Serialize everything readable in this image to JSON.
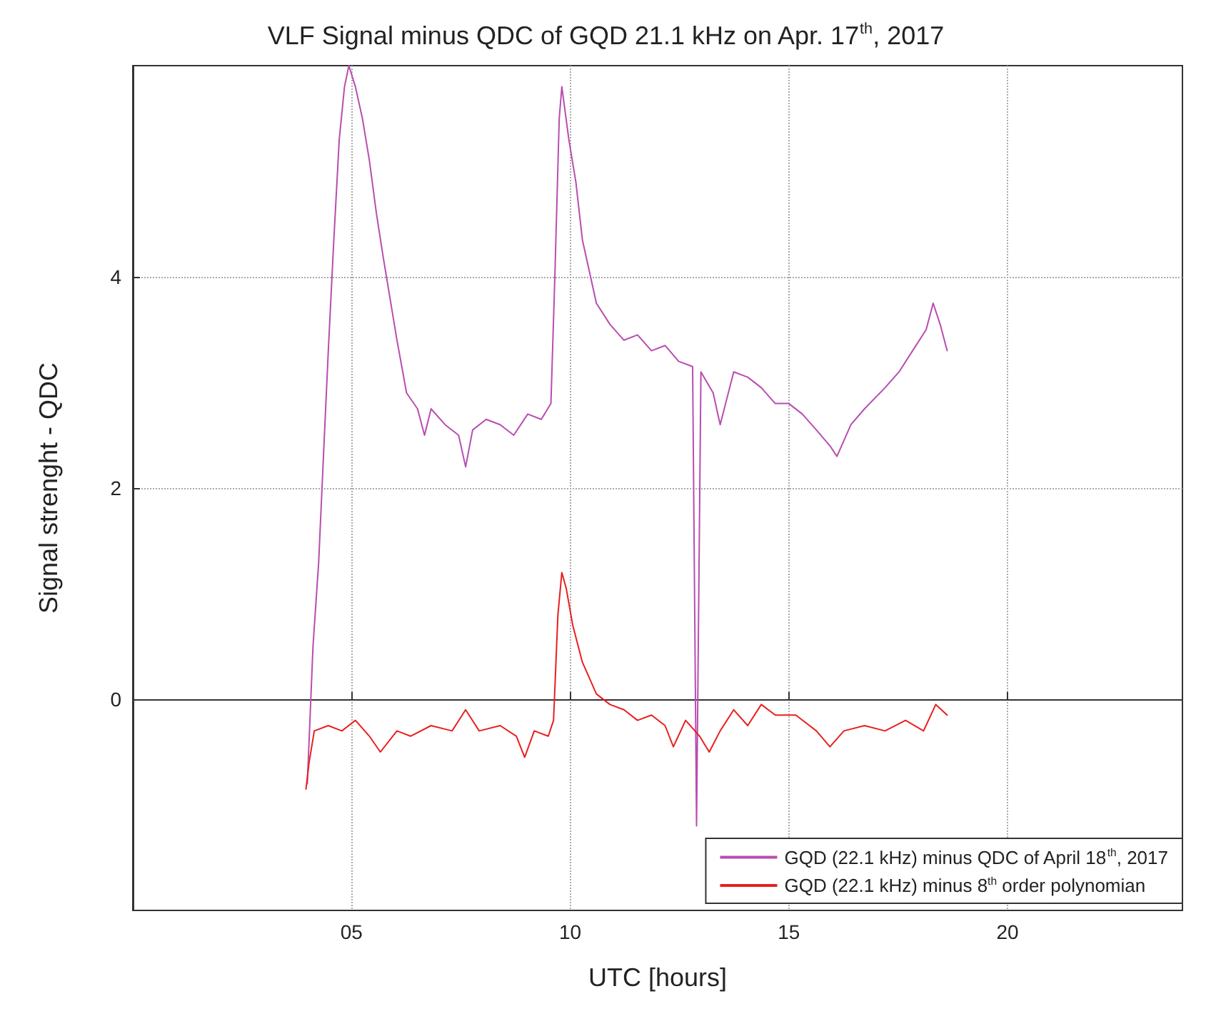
{
  "chart_data": {
    "type": "line",
    "title": "VLF Signal minus QDC of GQD 21.1 kHz on Apr. 17$^{th}$, 2017",
    "xlabel": "UTC [hours]",
    "ylabel": "Signal strenght - QDC",
    "xlim": [
      0,
      24
    ],
    "xticks": [
      {
        "value": 5,
        "label": "05"
      },
      10,
      15,
      20
    ],
    "ylim": [
      -2,
      6
    ],
    "yticks": [
      0,
      2,
      4
    ],
    "grid": true,
    "legend": "bottom right",
    "marker": "none",
    "line_style": "solid",
    "series": [
      {
        "name": "GQD (22.1 kHz) minus QDC of April 18$^{th}$, 2017",
        "color": "#b84db0",
        "x": [
          3.99,
          4.12,
          4.25,
          4.37,
          4.47,
          4.59,
          4.72,
          4.84,
          4.94,
          5.09,
          5.25,
          5.41,
          5.57,
          5.72,
          5.88,
          6.04,
          6.26,
          6.51,
          6.67,
          6.82,
          7.14,
          7.45,
          7.61,
          7.77,
          8.08,
          8.4,
          8.71,
          9.03,
          9.34,
          9.56,
          9.65,
          9.75,
          9.81,
          9.97,
          10.13,
          10.28,
          10.6,
          10.91,
          11.23,
          11.54,
          11.86,
          12.17,
          12.48,
          12.8,
          12.89,
          12.99,
          13.27,
          13.43,
          13.74,
          14.06,
          14.37,
          14.69,
          15.0,
          15.31,
          15.63,
          15.94,
          16.1,
          16.42,
          16.73,
          17.2,
          17.52,
          17.83,
          18.14,
          18.3,
          18.46,
          18.62
        ],
        "values": [
          -0.8,
          0.5,
          1.3,
          2.4,
          3.3,
          4.3,
          5.3,
          5.8,
          6.0,
          5.8,
          5.5,
          5.1,
          4.6,
          4.2,
          3.8,
          3.4,
          2.9,
          2.75,
          2.5,
          2.75,
          2.6,
          2.5,
          2.2,
          2.55,
          2.65,
          2.6,
          2.5,
          2.7,
          2.65,
          2.8,
          4.0,
          5.5,
          5.8,
          5.3,
          4.9,
          4.35,
          3.75,
          3.55,
          3.4,
          3.45,
          3.3,
          3.35,
          3.2,
          3.15,
          -1.2,
          3.1,
          2.9,
          2.6,
          3.1,
          3.05,
          2.95,
          2.8,
          2.8,
          2.7,
          2.55,
          2.4,
          2.3,
          2.6,
          2.75,
          2.95,
          3.1,
          3.3,
          3.5,
          3.75,
          3.55,
          3.3
        ]
      },
      {
        "name": "GQD (22.1 kHz) minus 8$^{th}$ order polynomian",
        "color": "#e8201e",
        "x": [
          3.96,
          4.03,
          4.15,
          4.47,
          4.78,
          5.09,
          5.41,
          5.66,
          6.04,
          6.35,
          6.82,
          7.3,
          7.61,
          7.92,
          8.4,
          8.77,
          8.96,
          9.18,
          9.5,
          9.62,
          9.72,
          9.81,
          9.91,
          10.06,
          10.28,
          10.6,
          10.91,
          11.23,
          11.54,
          11.86,
          12.17,
          12.36,
          12.64,
          12.96,
          13.18,
          13.43,
          13.74,
          14.06,
          14.37,
          14.69,
          15.16,
          15.63,
          15.94,
          16.26,
          16.73,
          17.2,
          17.67,
          18.08,
          18.36,
          18.62
        ],
        "values": [
          -0.85,
          -0.6,
          -0.3,
          -0.25,
          -0.3,
          -0.2,
          -0.35,
          -0.5,
          -0.3,
          -0.35,
          -0.25,
          -0.3,
          -0.1,
          -0.3,
          -0.25,
          -0.35,
          -0.55,
          -0.3,
          -0.35,
          -0.2,
          0.8,
          1.2,
          1.05,
          0.7,
          0.35,
          0.05,
          -0.05,
          -0.1,
          -0.2,
          -0.15,
          -0.25,
          -0.45,
          -0.2,
          -0.35,
          -0.5,
          -0.3,
          -0.1,
          -0.25,
          -0.05,
          -0.15,
          -0.15,
          -0.3,
          -0.45,
          -0.3,
          -0.25,
          -0.3,
          -0.2,
          -0.3,
          -0.05,
          -0.15
        ]
      }
    ]
  }
}
